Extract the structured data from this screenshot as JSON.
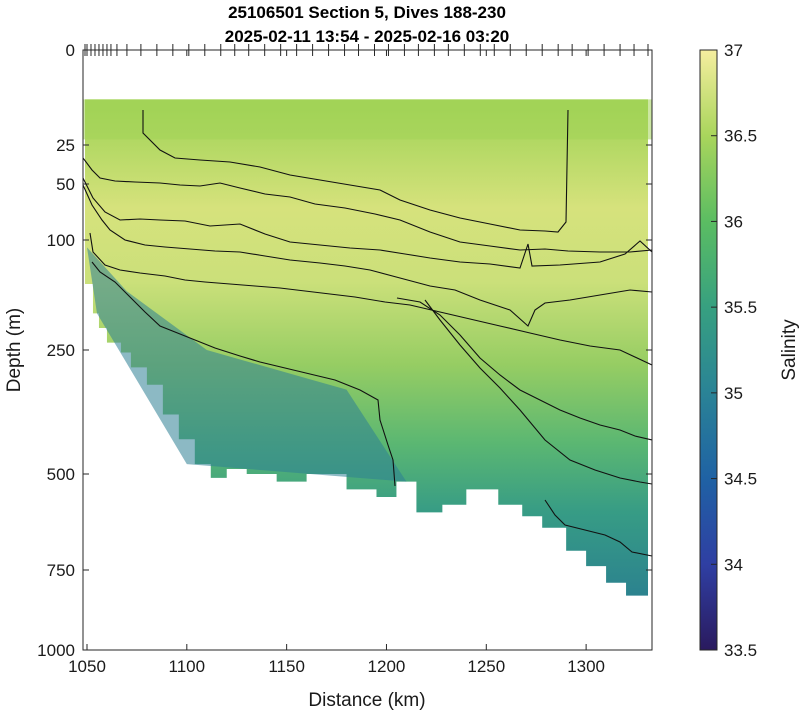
{
  "chart_data": {
    "type": "heatmap",
    "subtype": "contoured ocean section (filled contour + line contours)",
    "title": "25106501 Section 5, Dives 188-230",
    "subtitle": "2025-02-11 13:54 - 2025-02-16 03:20",
    "xlabel": "Distance (km)",
    "ylabel": "Depth (m)",
    "xlim": [
      1048,
      1333
    ],
    "x_ticks": [
      "1050",
      "1100",
      "1150",
      "1200",
      "1250",
      "1300"
    ],
    "y_axis": {
      "scale": "nonlinear (stretched near surface)",
      "reversed": true,
      "ticks": [
        "0",
        "25",
        "50",
        "100",
        "250",
        "500",
        "750",
        "1000"
      ]
    },
    "colorbar": {
      "label": "Salinity",
      "range": [
        33.5,
        37
      ],
      "colormap": "haline (dark blue - teal - green - yellow)",
      "ticks": [
        "33.5",
        "34",
        "34.5",
        "35",
        "35.5",
        "36",
        "36.5",
        "37"
      ]
    },
    "contour_levels": [
      35.5,
      35.75,
      36.0,
      36.25,
      36.5
    ],
    "data_top_depth_m": 13,
    "dive_x_km": [
      1049,
      1050,
      1052,
      1054,
      1056,
      1058,
      1060,
      1062,
      1065,
      1070,
      1077,
      1085,
      1093,
      1101,
      1109,
      1117,
      1124,
      1131,
      1139,
      1147,
      1155,
      1163,
      1171,
      1179,
      1186,
      1194,
      1201,
      1209,
      1216,
      1224,
      1231,
      1239,
      1247,
      1254,
      1262,
      1270,
      1278,
      1286,
      1293,
      1301,
      1309,
      1317,
      1324,
      1331
    ],
    "bottom_profile": {
      "x_km": [
        1049,
        1053,
        1056,
        1060,
        1067,
        1072,
        1080,
        1088,
        1096,
        1104,
        1112,
        1120,
        1130,
        1145,
        1160,
        1180,
        1195,
        1205,
        1215,
        1228,
        1240,
        1256,
        1268,
        1278,
        1290,
        1300,
        1310,
        1320,
        1331
      ],
      "max_depth_m": [
        110,
        160,
        200,
        220,
        240,
        255,
        285,
        320,
        380,
        430,
        480,
        510,
        490,
        500,
        520,
        500,
        540,
        560,
        520,
        600,
        580,
        540,
        580,
        610,
        640,
        700,
        740,
        790,
        830
      ]
    },
    "salinity_field_summary": {
      "surface_layer_0_60m": 36.3,
      "subsurface_max_core_100_250m": 36.7,
      "depth_500m": 35.8,
      "deep_water_offshore_west": 35.0
    }
  }
}
